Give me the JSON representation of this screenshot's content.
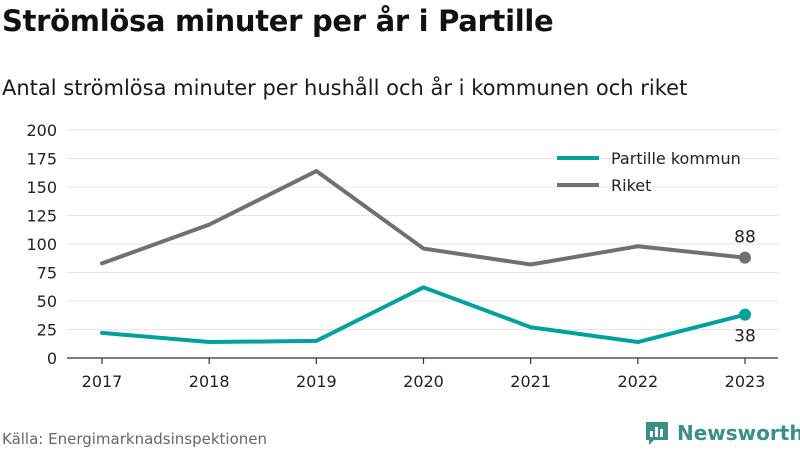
{
  "header": {
    "title": "Strömlösa minuter per år i Partille",
    "subtitle": "Antal strömlösa minuter per hushåll och år i kommunen och riket"
  },
  "footer": {
    "source": "Källa: Energimarknadsinspektionen",
    "brand": "Newsworthy",
    "brand_icon": "bar-chart-logo-icon"
  },
  "chart_data": {
    "type": "line",
    "categories": [
      "2017",
      "2018",
      "2019",
      "2020",
      "2021",
      "2022",
      "2023"
    ],
    "series": [
      {
        "name": "Partille kommun",
        "values": [
          22,
          14,
          15,
          62,
          27,
          14,
          38
        ],
        "color": "#00a19a",
        "end_label": "38"
      },
      {
        "name": "Riket",
        "values": [
          83,
          117,
          164,
          96,
          82,
          98,
          88
        ],
        "color": "#6f6f75",
        "end_label": "88"
      }
    ],
    "yticks": [
      "0",
      "25",
      "50",
      "75",
      "100",
      "125",
      "150",
      "175",
      "200"
    ],
    "ylim": [
      0,
      200
    ],
    "grid": true,
    "legend_position": "top-right",
    "gridline_color": "#e6e6e6",
    "axis_color": "#333333",
    "brand_color": "#3a8f86"
  }
}
